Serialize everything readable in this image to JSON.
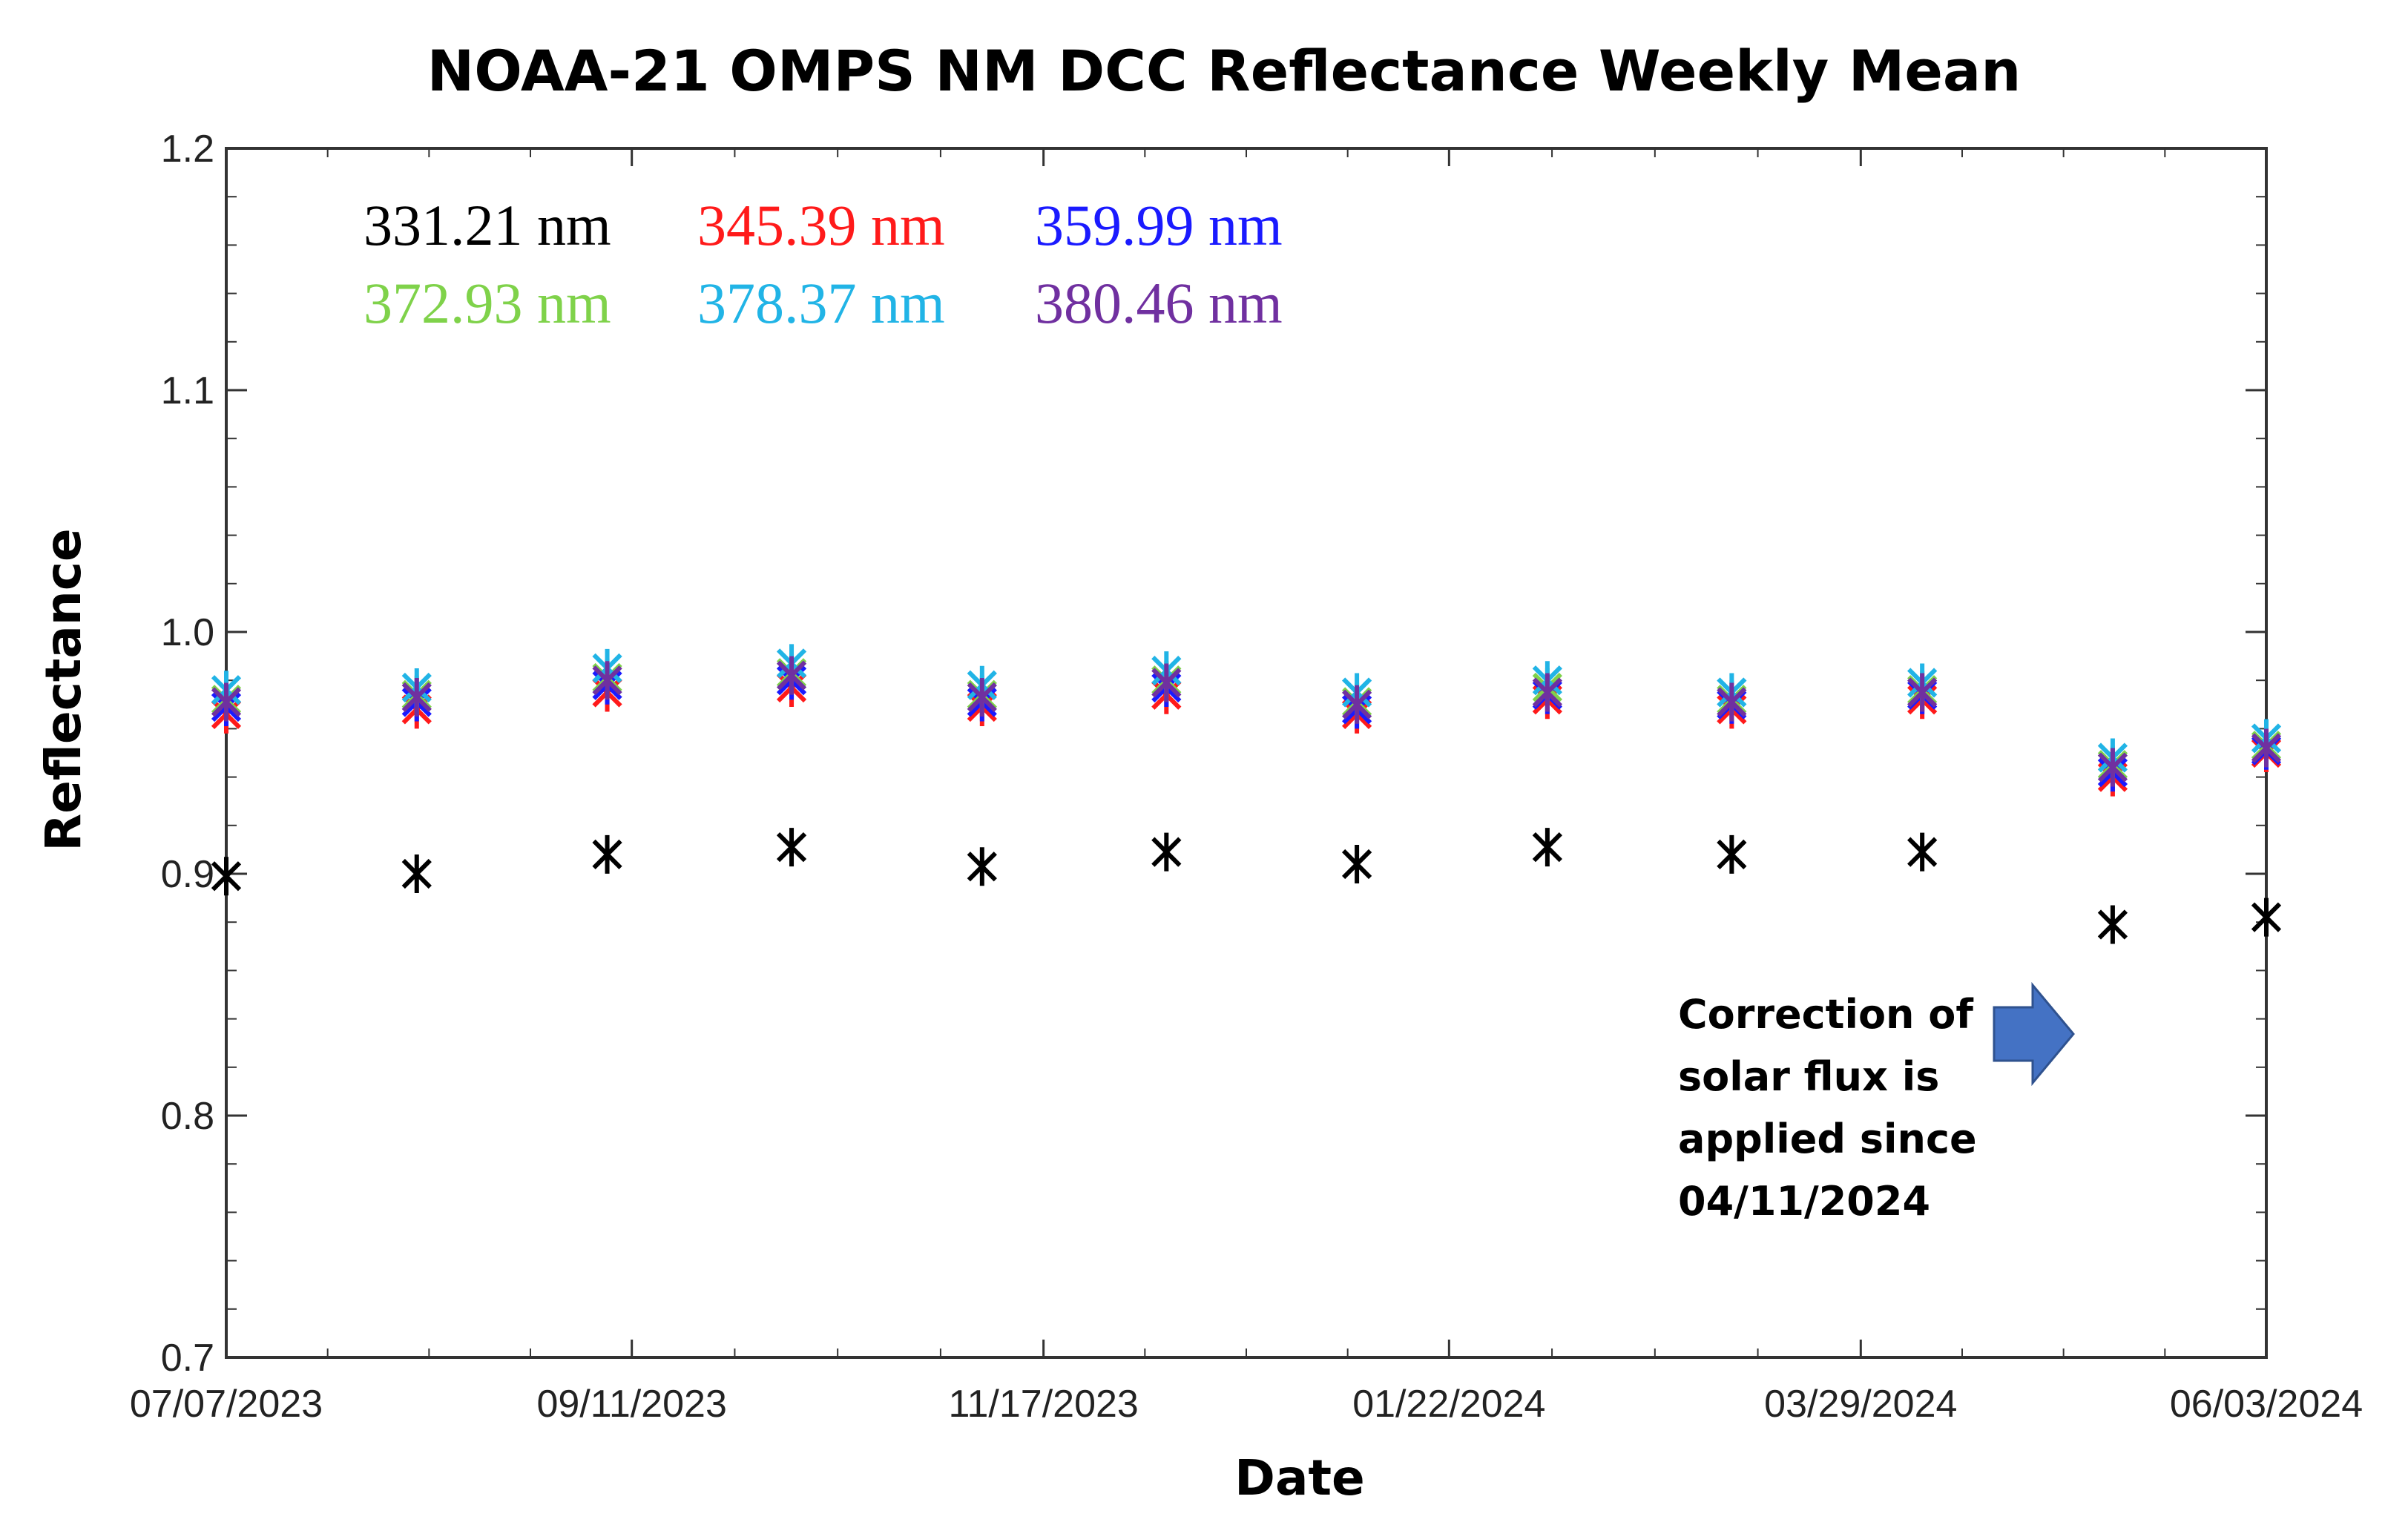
{
  "chart_data": {
    "type": "scatter",
    "title": "NOAA-21 OMPS NM DCC Reflectance Weekly Mean",
    "xlabel": "Date",
    "ylabel": "Reflectance",
    "ylim": [
      0.7,
      1.2
    ],
    "yticks": [
      0.7,
      0.8,
      0.9,
      1.0,
      1.1,
      1.2
    ],
    "ytick_labels": [
      "0.7",
      "0.8",
      "0.9",
      "1.0",
      "1.1",
      "1.2"
    ],
    "xlim": [
      0,
      332
    ],
    "xticks": [
      0,
      66,
      133,
      199,
      266,
      332
    ],
    "xtick_labels": [
      "07/07/2023",
      "09/11/2023",
      "11/17/2023",
      "01/22/2024",
      "03/29/2024",
      "06/03/2024"
    ],
    "x_days_since_start": [
      0,
      31,
      62,
      92,
      123,
      153,
      184,
      215,
      245,
      276,
      307,
      332
    ],
    "marker": "asterisk",
    "grid": false,
    "series": [
      {
        "name": "331.21 nm",
        "color": "#000000",
        "values": [
          0.899,
          0.9,
          0.908,
          0.911,
          0.903,
          0.909,
          0.904,
          0.911,
          0.908,
          0.909,
          0.879,
          0.882
        ]
      },
      {
        "name": "345.39 nm",
        "color": "#ff1a1a",
        "values": [
          0.966,
          0.968,
          0.975,
          0.977,
          0.969,
          0.974,
          0.966,
          0.972,
          0.968,
          0.972,
          0.94,
          0.95
        ]
      },
      {
        "name": "359.99 nm",
        "color": "#1a1aff",
        "values": [
          0.969,
          0.971,
          0.978,
          0.98,
          0.971,
          0.977,
          0.968,
          0.974,
          0.97,
          0.974,
          0.942,
          0.951
        ]
      },
      {
        "name": "372.93 nm",
        "color": "#7fd24a",
        "values": [
          0.972,
          0.974,
          0.981,
          0.983,
          0.974,
          0.98,
          0.971,
          0.977,
          0.972,
          0.976,
          0.945,
          0.953
        ]
      },
      {
        "name": "378.37 nm",
        "color": "#21b4e6",
        "values": [
          0.976,
          0.977,
          0.985,
          0.987,
          0.978,
          0.984,
          0.975,
          0.98,
          0.975,
          0.979,
          0.948,
          0.956
        ]
      },
      {
        "name": "380.46 nm",
        "color": "#7030a0",
        "values": [
          0.971,
          0.973,
          0.98,
          0.982,
          0.973,
          0.979,
          0.97,
          0.975,
          0.971,
          0.975,
          0.944,
          0.952
        ]
      }
    ],
    "legend": {
      "placement": "top-left",
      "rows": [
        [
          {
            "label": "331.21 nm",
            "color": "#000000"
          },
          {
            "label": "345.39 nm",
            "color": "#ff1a1a"
          },
          {
            "label": "359.99 nm",
            "color": "#1a1aff"
          }
        ],
        [
          {
            "label": "372.93 nm",
            "color": "#7fd24a"
          },
          {
            "label": "378.37 nm",
            "color": "#21b4e6"
          },
          {
            "label": "380.46 nm",
            "color": "#7030a0"
          }
        ]
      ]
    },
    "annotation": {
      "lines": [
        "Correction of",
        "solar flux is",
        "applied since",
        "04/11/2024"
      ],
      "arrow_color": "#4472c4",
      "arrow_direction": "right"
    }
  }
}
